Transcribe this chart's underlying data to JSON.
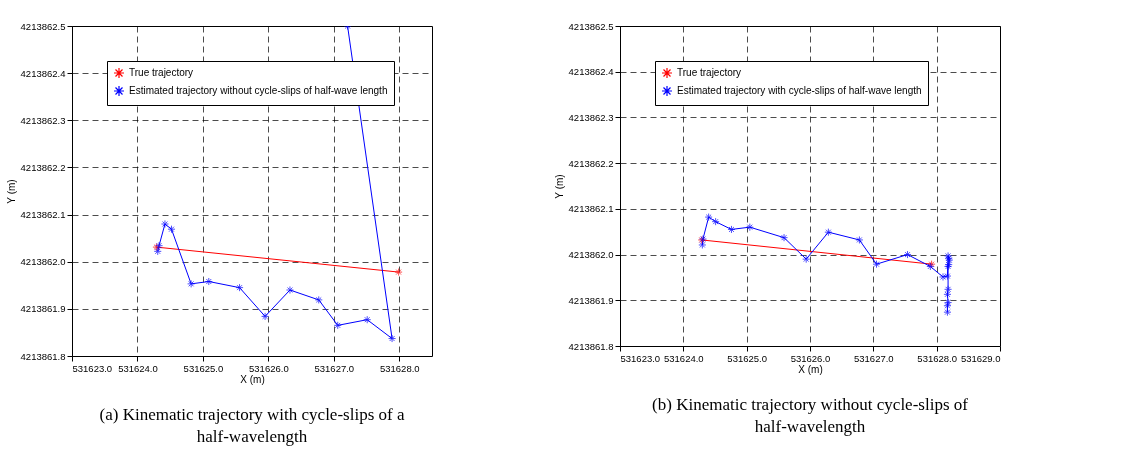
{
  "chart_data": [
    {
      "type": "line",
      "xlabel": "X (m)",
      "ylabel": "Y (m)",
      "xlim": [
        531623.0,
        531628.5
      ],
      "xticks": [
        {
          "value": 531623,
          "label": "531623.0"
        },
        {
          "value": 531624,
          "label": "531624.0"
        },
        {
          "value": 531625,
          "label": "531625.0"
        },
        {
          "value": 531626,
          "label": "531626.0"
        },
        {
          "value": 531627,
          "label": "531627.0"
        },
        {
          "value": 531628,
          "label": "531628.0"
        }
      ],
      "ylim": [
        4213861.8,
        4213862.5
      ],
      "yticks": [
        4213861.8,
        4213861.9,
        {
          "value": 4213862.0,
          "label": "4213862.0"
        },
        4213862.1,
        4213862.2,
        4213862.3,
        4213862.4,
        4213862.5
      ],
      "grid": true,
      "legend": "top left",
      "marker": "cross",
      "line_style": "solid",
      "annotations": [
        "(a) Kinematic trajectory with cycle-slips of a\nhalf-wavelength"
      ],
      "series": [
        {
          "name": "True trajectory",
          "color": "#ff0000",
          "x": [
            531624.29,
            531627.99
          ],
          "values": [
            4213862.031,
            4213861.978
          ]
        },
        {
          "name": "Estimated trajectory without cycle-slips of half-wave length",
          "color": "#0000ff",
          "x": [
            531624.31,
            531624.33,
            531624.42,
            531624.52,
            531624.82,
            531625.09,
            531625.56,
            531625.95,
            531626.33,
            531626.77,
            531627.06,
            531627.51,
            531627.89,
            531627.21
          ],
          "values": [
            4213862.022,
            4213862.034,
            4213862.08,
            4213862.069,
            4213861.953,
            4213861.958,
            4213861.945,
            4213861.884,
            4213861.94,
            4213861.919,
            4213861.865,
            4213861.877,
            4213861.837,
            4213862.5
          ]
        }
      ]
    },
    {
      "type": "line",
      "xlabel": "X (m)",
      "ylabel": "Y (m)",
      "xlim": [
        531623.0,
        531629.0
      ],
      "xticks": [
        {
          "value": 531623,
          "label": "531623.0"
        },
        {
          "value": 531624,
          "label": "531624.0"
        },
        {
          "value": 531625,
          "label": "531625.0"
        },
        {
          "value": 531626,
          "label": "531626.0"
        },
        {
          "value": 531627,
          "label": "531627.0"
        },
        {
          "value": 531628,
          "label": "531628.0"
        },
        {
          "value": 531629,
          "label": "531629.0"
        }
      ],
      "ylim": [
        4213861.8,
        4213862.5
      ],
      "yticks": [
        4213861.8,
        4213861.9,
        {
          "value": 4213862.0,
          "label": "4213862.0"
        },
        4213862.1,
        4213862.2,
        4213862.3,
        4213862.4,
        4213862.5
      ],
      "grid": true,
      "legend": "top left",
      "marker": "cross",
      "line_style": "solid",
      "annotations": [
        "(b) Kinematic trajectory without cycle-slips of\nhalf-wavelength"
      ],
      "series": [
        {
          "name": "True trajectory",
          "color": "#ff0000",
          "x": [
            531624.29,
            531627.92
          ],
          "values": [
            4213862.032,
            4213861.979
          ]
        },
        {
          "name": "Estimated trajectory with cycle-slips of half-wave length",
          "color": "#0000ff",
          "x": [
            531624.3,
            531624.31,
            531624.4,
            531624.51,
            531624.76,
            531625.05,
            531625.59,
            531625.94,
            531626.29,
            531626.78,
            531627.05,
            531627.54,
            531627.9,
            531628.1,
            531628.17,
            531628.18,
            531628.19,
            531628.2,
            531628.19,
            531628.18,
            531628.18,
            531628.17,
            531628.18,
            531628.17,
            531628.17
          ],
          "values": [
            4213862.021,
            4213862.034,
            4213862.082,
            4213862.072,
            4213862.055,
            4213862.06,
            4213862.037,
            4213861.99,
            4213862.049,
            4213862.032,
            4213861.979,
            4213862.0,
            4213861.974,
            4213861.951,
            4213861.953,
            4213861.997,
            4213861.992,
            4213861.988,
            4213861.978,
            4213861.974,
            4213861.924,
            4213861.913,
            4213861.895,
            4213861.888,
            4213861.874
          ]
        }
      ]
    }
  ]
}
